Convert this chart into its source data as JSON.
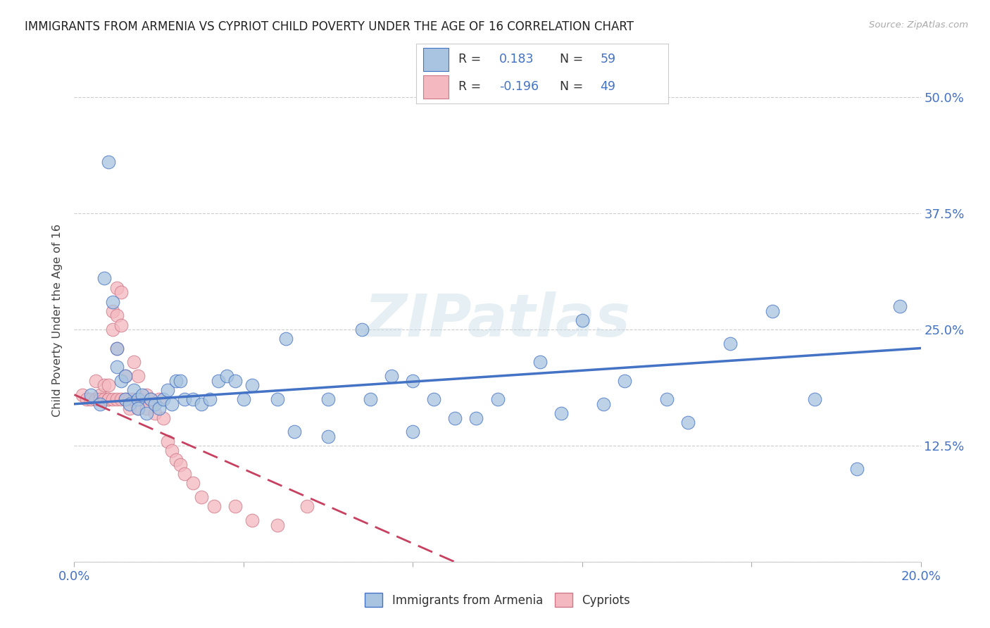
{
  "title": "IMMIGRANTS FROM ARMENIA VS CYPRIOT CHILD POVERTY UNDER THE AGE OF 16 CORRELATION CHART",
  "source": "Source: ZipAtlas.com",
  "ylabel": "Child Poverty Under the Age of 16",
  "xlim": [
    0.0,
    0.2
  ],
  "ylim": [
    0.0,
    0.52
  ],
  "xtick_positions": [
    0.0,
    0.04,
    0.08,
    0.12,
    0.16,
    0.2
  ],
  "xtick_labels": [
    "0.0%",
    "",
    "",
    "",
    "",
    "20.0%"
  ],
  "ytick_positions": [
    0.0,
    0.125,
    0.25,
    0.375,
    0.5
  ],
  "ytick_labels": [
    "",
    "12.5%",
    "25.0%",
    "37.5%",
    "50.0%"
  ],
  "R_armenia": "0.183",
  "N_armenia": "59",
  "R_cypriot": "-0.196",
  "N_cypriot": "49",
  "color_armenia_fill": "#a8c4e0",
  "color_armenia_edge": "#4472c4",
  "color_cypriot_fill": "#f4b8c0",
  "color_cypriot_edge": "#d07888",
  "color_regression_armenia": "#4472c4",
  "color_regression_cypriot": "#c84060",
  "color_blue_text": "#4472c4",
  "color_dark_text": "#1a1a2e",
  "watermark": "ZIPatlas",
  "armenia_x": [
    0.008,
    0.004,
    0.006,
    0.007,
    0.009,
    0.01,
    0.01,
    0.011,
    0.012,
    0.012,
    0.013,
    0.014,
    0.015,
    0.015,
    0.016,
    0.017,
    0.018,
    0.019,
    0.02,
    0.021,
    0.022,
    0.023,
    0.024,
    0.025,
    0.026,
    0.028,
    0.03,
    0.032,
    0.034,
    0.036,
    0.038,
    0.04,
    0.042,
    0.048,
    0.052,
    0.06,
    0.068,
    0.075,
    0.08,
    0.085,
    0.09,
    0.095,
    0.1,
    0.11,
    0.12,
    0.13,
    0.14,
    0.155,
    0.165,
    0.175,
    0.185,
    0.195,
    0.05,
    0.06,
    0.07,
    0.08,
    0.115,
    0.125,
    0.145
  ],
  "armenia_y": [
    0.43,
    0.18,
    0.17,
    0.305,
    0.28,
    0.23,
    0.21,
    0.195,
    0.175,
    0.2,
    0.17,
    0.185,
    0.175,
    0.165,
    0.18,
    0.16,
    0.175,
    0.17,
    0.165,
    0.175,
    0.185,
    0.17,
    0.195,
    0.195,
    0.175,
    0.175,
    0.17,
    0.175,
    0.195,
    0.2,
    0.195,
    0.175,
    0.19,
    0.175,
    0.14,
    0.135,
    0.25,
    0.2,
    0.195,
    0.175,
    0.155,
    0.155,
    0.175,
    0.215,
    0.26,
    0.195,
    0.175,
    0.235,
    0.27,
    0.175,
    0.1,
    0.275,
    0.24,
    0.175,
    0.175,
    0.14,
    0.16,
    0.17,
    0.15
  ],
  "cypriot_x": [
    0.002,
    0.003,
    0.004,
    0.005,
    0.005,
    0.006,
    0.006,
    0.007,
    0.007,
    0.008,
    0.008,
    0.008,
    0.009,
    0.009,
    0.009,
    0.01,
    0.01,
    0.01,
    0.01,
    0.011,
    0.011,
    0.011,
    0.012,
    0.012,
    0.013,
    0.013,
    0.014,
    0.014,
    0.015,
    0.015,
    0.016,
    0.017,
    0.017,
    0.018,
    0.019,
    0.02,
    0.021,
    0.022,
    0.023,
    0.024,
    0.025,
    0.026,
    0.028,
    0.03,
    0.033,
    0.038,
    0.042,
    0.048,
    0.055
  ],
  "cypriot_y": [
    0.18,
    0.175,
    0.175,
    0.175,
    0.195,
    0.18,
    0.175,
    0.19,
    0.175,
    0.19,
    0.175,
    0.175,
    0.27,
    0.25,
    0.175,
    0.295,
    0.265,
    0.23,
    0.175,
    0.29,
    0.255,
    0.175,
    0.2,
    0.175,
    0.175,
    0.165,
    0.215,
    0.175,
    0.2,
    0.165,
    0.175,
    0.18,
    0.165,
    0.175,
    0.16,
    0.175,
    0.155,
    0.13,
    0.12,
    0.11,
    0.105,
    0.095,
    0.085,
    0.07,
    0.06,
    0.06,
    0.045,
    0.04,
    0.06
  ]
}
